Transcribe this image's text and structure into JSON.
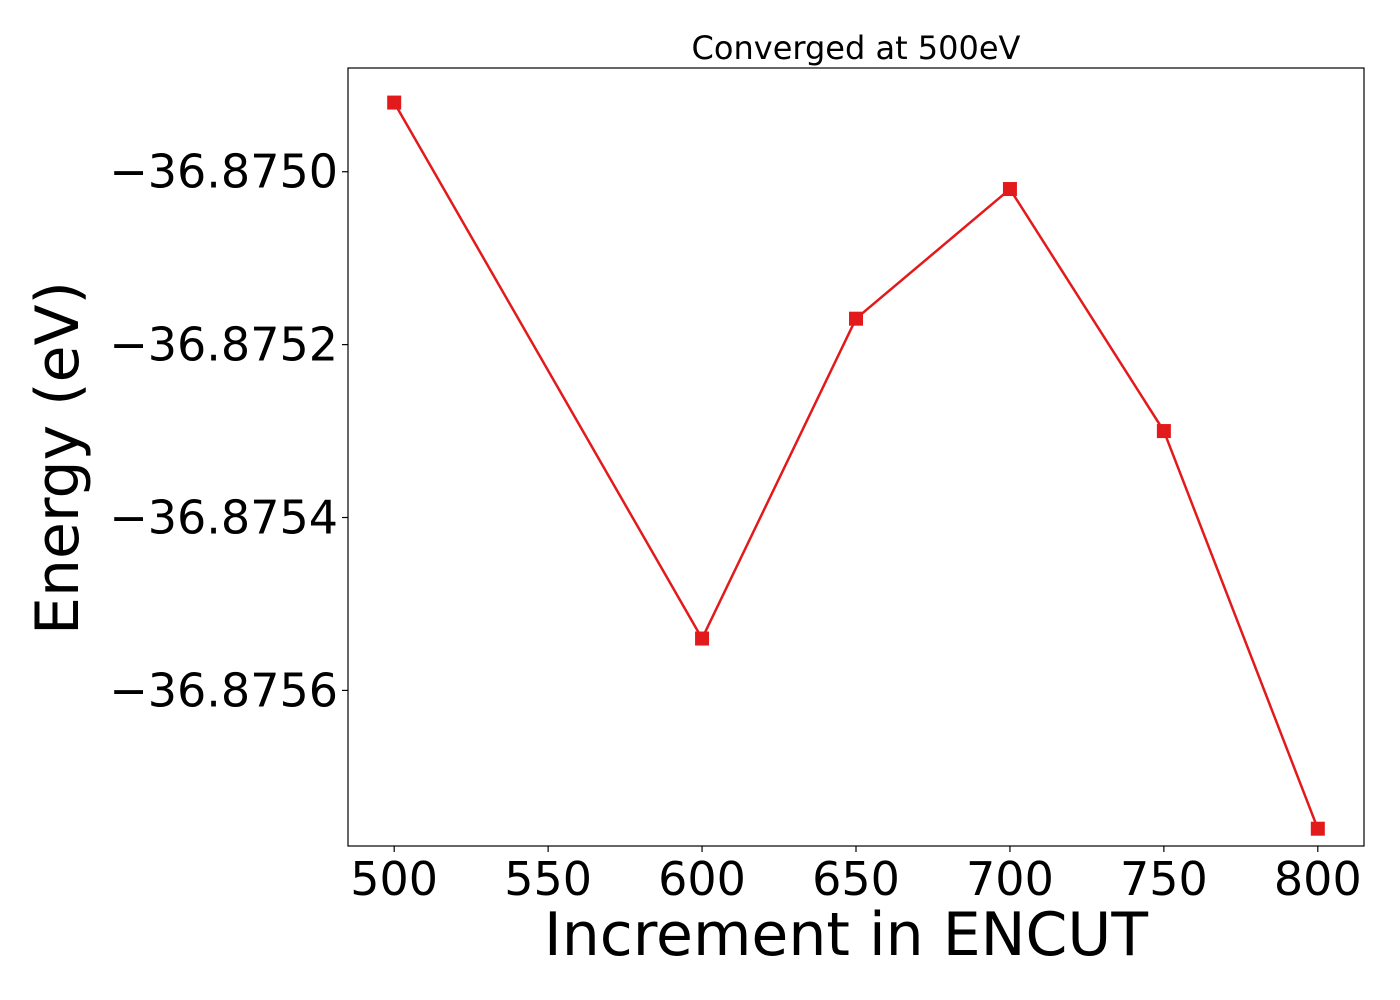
{
  "chart_data": {
    "type": "line",
    "title": "Converged at 500eV",
    "xlabel": "Increment in ENCUT",
    "ylabel": "Energy (eV)",
    "x": [
      500,
      600,
      650,
      700,
      750,
      800
    ],
    "series": [
      {
        "values": [
          -36.87492,
          -36.87554,
          -36.87517,
          -36.87502,
          -36.8753,
          -36.87576
        ],
        "color": "#e31a1c",
        "marker": "square"
      }
    ],
    "xticks": [
      500,
      550,
      600,
      650,
      700,
      750,
      800
    ],
    "xtick_labels": [
      "500",
      "550",
      "600",
      "650",
      "700",
      "750",
      "800"
    ],
    "yticks": [
      -36.875,
      -36.8752,
      -36.8754,
      -36.8756
    ],
    "ytick_labels": [
      "−36.8750",
      "−36.8752",
      "−36.8754",
      "−36.8756"
    ],
    "xlim": [
      485,
      815
    ],
    "ylim": [
      -36.87578,
      -36.87488
    ],
    "grid": false,
    "legend": false
  }
}
